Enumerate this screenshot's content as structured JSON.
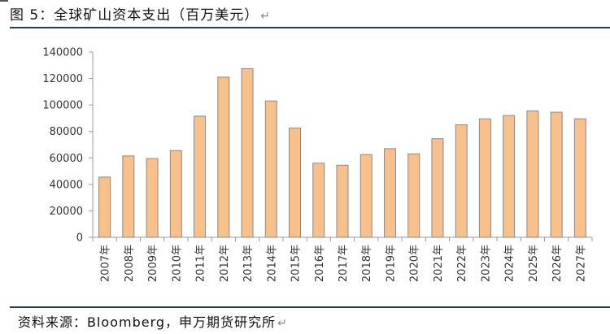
{
  "figure": {
    "title": "图 5：全球矿山资本支出（百万美元）",
    "source": "资料来源：Bloomberg，申万期货研究所"
  },
  "colors": {
    "bar_fill": "#F8C08C",
    "bar_stroke": "#8a8a8a",
    "rule": "#1f3a6b"
  },
  "chart_data": {
    "type": "bar",
    "title": "",
    "xlabel": "",
    "ylabel": "",
    "categories": [
      "2007年",
      "2008年",
      "2009年",
      "2010年",
      "2011年",
      "2012年",
      "2013年",
      "2014年",
      "2015年",
      "2016年",
      "2017年",
      "2018年",
      "2019年",
      "2020年",
      "2021年",
      "2022年",
      "2023年",
      "2024年",
      "2025年",
      "2026年",
      "2027年"
    ],
    "values": [
      45500,
      61500,
      59500,
      65500,
      91500,
      121000,
      127500,
      103000,
      82500,
      56000,
      54500,
      62500,
      67000,
      63000,
      74500,
      85000,
      89500,
      92000,
      95500,
      94500,
      89500
    ],
    "ylim": [
      0,
      140000
    ],
    "yticks": [
      0,
      20000,
      40000,
      60000,
      80000,
      100000,
      120000,
      140000
    ],
    "grid": false,
    "legend": "none"
  }
}
